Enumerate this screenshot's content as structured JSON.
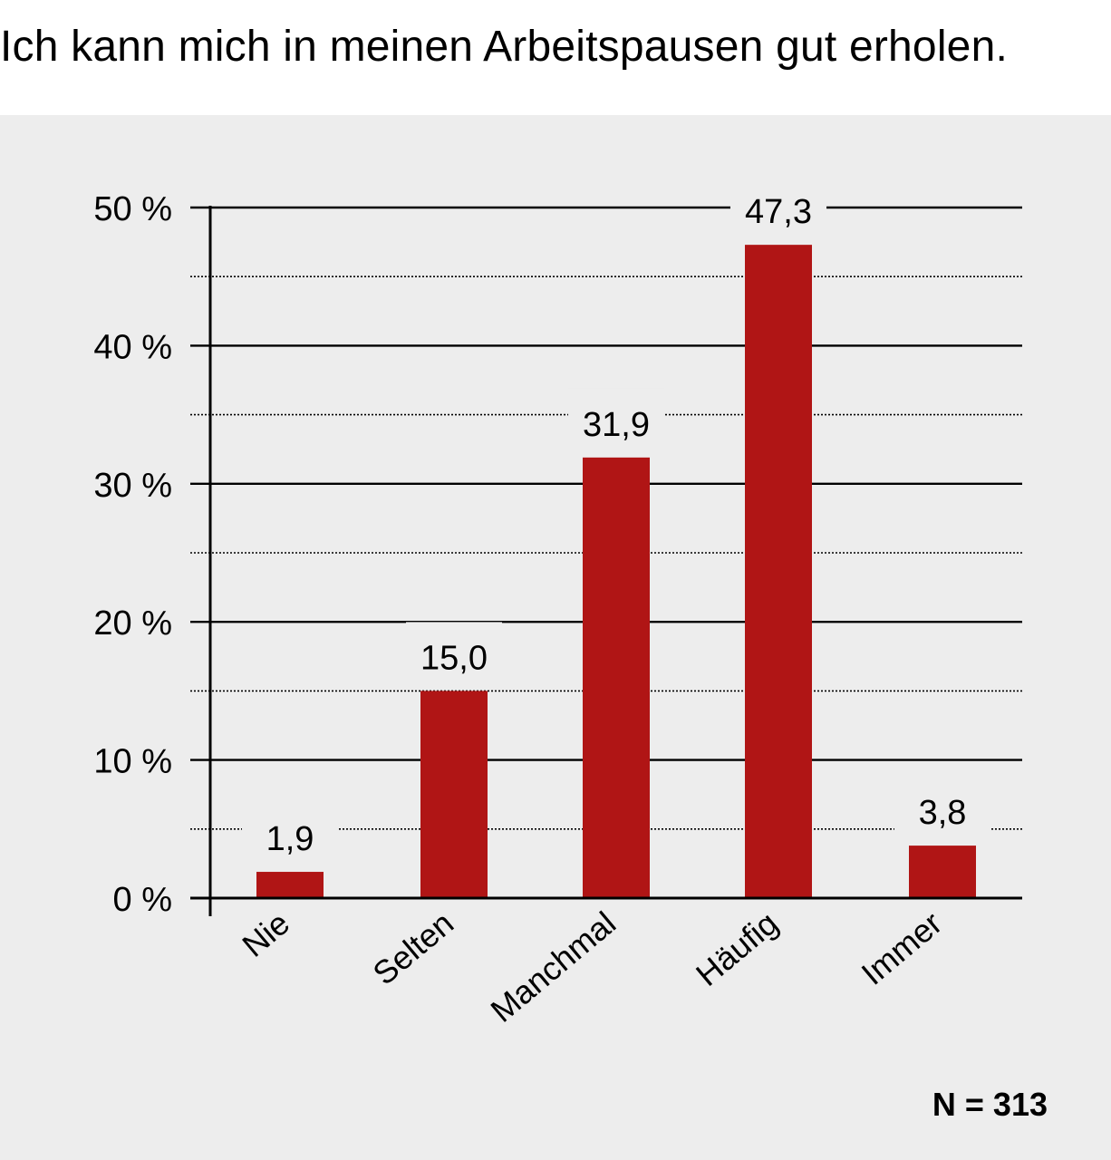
{
  "title": "Ich kann mich in meinen Arbeitspausen gut erholen.",
  "note": "N = 313",
  "chart_data": {
    "type": "bar",
    "title": "Ich kann mich in meinen Arbeitspausen gut erholen.",
    "categories": [
      "Nie",
      "Selten",
      "Manchmal",
      "Häufig",
      "Immer"
    ],
    "values": [
      1.9,
      15.0,
      31.9,
      47.3,
      3.8
    ],
    "value_labels": [
      "1,9",
      "15,0",
      "31,9",
      "47,3",
      "3,8"
    ],
    "ylim": [
      0,
      50
    ],
    "yticks": [
      0,
      10,
      20,
      30,
      40,
      50
    ],
    "ytick_labels": [
      "0 %",
      "10 %",
      "20 %",
      "30 %",
      "40 %",
      "50 %"
    ],
    "minor_gridlines": [
      5,
      15,
      25,
      35,
      45
    ],
    "grid": true,
    "bar_color": "#b01515",
    "background_color": "#ededed"
  }
}
